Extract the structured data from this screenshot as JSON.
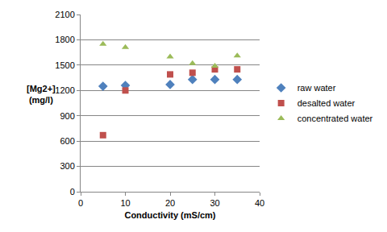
{
  "chart_data": {
    "type": "scatter",
    "x_label": "Conductivity (mS/cm)",
    "y_label": "[Mg2+]\n(mg/l)",
    "xlim": [
      0,
      40
    ],
    "xticks": [
      0,
      10,
      20,
      30,
      40
    ],
    "ylim": [
      0,
      2100
    ],
    "yticks": [
      0,
      300,
      600,
      900,
      1200,
      1500,
      1800,
      2100
    ],
    "grid": true,
    "legend": "right",
    "series": [
      {
        "name": "raw water",
        "color": "#4f81bd",
        "marker": "diamond",
        "x": [
          5,
          10,
          20,
          25,
          30,
          35
        ],
        "values": [
          1250,
          1260,
          1270,
          1330,
          1330,
          1330
        ]
      },
      {
        "name": "desalted water",
        "color": "#c0504d",
        "marker": "square",
        "x": [
          5,
          10,
          20,
          25,
          30,
          35
        ],
        "values": [
          670,
          1200,
          1390,
          1410,
          1450,
          1450
        ]
      },
      {
        "name": "concentrated water",
        "color": "#9bbb59",
        "marker": "triangle-up",
        "x": [
          5,
          10,
          20,
          25,
          30,
          35
        ],
        "values": [
          1750,
          1710,
          1600,
          1520,
          1490,
          1610
        ]
      }
    ]
  }
}
